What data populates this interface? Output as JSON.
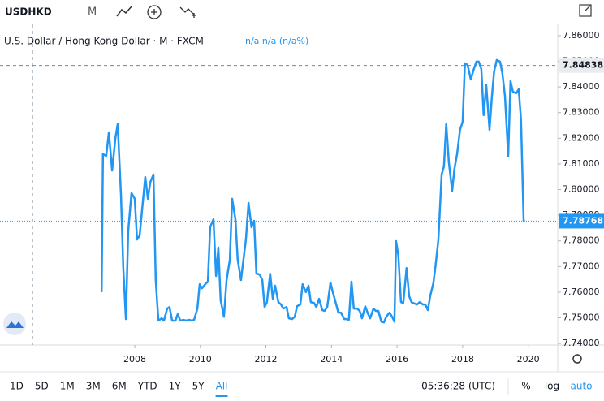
{
  "toolbar": {
    "symbol": "USDHKD",
    "interval": "M"
  },
  "chart_data": {
    "type": "line",
    "title": "U.S. Dollar / Hong Kong Dollar · M · FXCM",
    "legend_values": "n/a n/a (n/a%)",
    "color": "#2196f3",
    "log_scale": false,
    "grid": false,
    "x": [
      2006.99,
      2007.03,
      2007.13,
      2007.21,
      2007.31,
      2007.41,
      2007.48,
      2007.58,
      2007.65,
      2007.73,
      2007.8,
      2007.9,
      2008.0,
      2008.07,
      2008.15,
      2008.22,
      2008.32,
      2008.4,
      2008.47,
      2008.57,
      2008.64,
      2008.72,
      2008.82,
      2008.89,
      2008.99,
      2009.06,
      2009.14,
      2009.24,
      2009.31,
      2009.39,
      2009.49,
      2009.56,
      2009.66,
      2009.73,
      2009.81,
      2009.91,
      2009.98,
      2010.05,
      2010.15,
      2010.23,
      2010.3,
      2010.4,
      2010.48,
      2010.55,
      2010.62,
      2010.72,
      2010.8,
      2010.9,
      2010.97,
      2011.07,
      2011.14,
      2011.24,
      2011.32,
      2011.39,
      2011.47,
      2011.56,
      2011.64,
      2011.71,
      2011.81,
      2011.89,
      2011.96,
      2012.03,
      2012.13,
      2012.21,
      2012.28,
      2012.38,
      2012.46,
      2012.53,
      2012.63,
      2012.7,
      2012.8,
      2012.88,
      2012.95,
      2013.05,
      2013.12,
      2013.22,
      2013.3,
      2013.37,
      2013.47,
      2013.54,
      2013.62,
      2013.72,
      2013.79,
      2013.87,
      2013.97,
      2014.04,
      2014.11,
      2014.21,
      2014.29,
      2014.39,
      2014.46,
      2014.53,
      2014.61,
      2014.68,
      2014.78,
      2014.86,
      2014.93,
      2015.03,
      2015.1,
      2015.18,
      2015.28,
      2015.35,
      2015.43,
      2015.52,
      2015.6,
      2015.67,
      2015.77,
      2015.85,
      2015.92,
      2015.97,
      2016.04,
      2016.12,
      2016.19,
      2016.29,
      2016.37,
      2016.44,
      2016.54,
      2016.61,
      2016.69,
      2016.79,
      2016.86,
      2016.94,
      2017.01,
      2017.11,
      2017.18,
      2017.26,
      2017.36,
      2017.43,
      2017.5,
      2017.58,
      2017.68,
      2017.75,
      2017.83,
      2017.92,
      2018.0,
      2018.07,
      2018.15,
      2018.25,
      2018.32,
      2018.42,
      2018.49,
      2018.57,
      2018.64,
      2018.72,
      2018.82,
      2018.89,
      2018.96,
      2019.04,
      2019.14,
      2019.21,
      2019.29,
      2019.39,
      2019.46,
      2019.53,
      2019.63,
      2019.71,
      2019.78,
      2019.86,
      2019.9
    ],
    "values": [
      7.76,
      7.8138,
      7.8131,
      7.8223,
      7.8074,
      7.8201,
      7.8255,
      7.7979,
      7.7694,
      7.7495,
      7.7837,
      7.7986,
      7.7964,
      7.7805,
      7.7821,
      7.7916,
      7.8049,
      7.7964,
      7.8027,
      7.8059,
      7.7647,
      7.7489,
      7.7498,
      7.7489,
      7.7536,
      7.7542,
      7.7489,
      7.7489,
      7.7514,
      7.7489,
      7.7492,
      7.7489,
      7.7492,
      7.7489,
      7.7492,
      7.7536,
      7.7631,
      7.7615,
      7.7631,
      7.7641,
      7.7853,
      7.7884,
      7.7663,
      7.7774,
      7.7568,
      7.7504,
      7.7647,
      7.7726,
      7.7964,
      7.7884,
      7.7726,
      7.7647,
      7.7732,
      7.7805,
      7.7948,
      7.7853,
      7.7878,
      7.7672,
      7.7669,
      7.7647,
      7.7542,
      7.7561,
      7.7672,
      7.7574,
      7.7625,
      7.7561,
      7.7552,
      7.7536,
      7.7542,
      7.7498,
      7.7495,
      7.7504,
      7.7545,
      7.7552,
      7.7631,
      7.76,
      7.7625,
      7.7561,
      7.7558,
      7.7542,
      7.7574,
      7.753,
      7.7527,
      7.7542,
      7.7637,
      7.76,
      7.7568,
      7.752,
      7.752,
      7.7495,
      7.7495,
      7.7492,
      7.7641,
      7.7536,
      7.7536,
      7.7527,
      7.7498,
      7.7545,
      7.752,
      7.7498,
      7.7536,
      7.7527,
      7.7527,
      7.7485,
      7.7482,
      7.7504,
      7.752,
      7.7504,
      7.7485,
      7.7799,
      7.7742,
      7.7561,
      7.7558,
      7.7694,
      7.7584,
      7.7561,
      7.7555,
      7.7552,
      7.7561,
      7.7552,
      7.7552,
      7.753,
      7.7584,
      7.7637,
      7.771,
      7.7805,
      7.8059,
      7.809,
      7.8255,
      7.8106,
      7.7995,
      7.8081,
      7.8138,
      7.8233,
      7.8264,
      7.8492,
      7.8486,
      7.8429,
      7.8461,
      7.8499,
      7.8499,
      7.847,
      7.829,
      7.8407,
      7.8233,
      7.8359,
      7.8461,
      7.8505,
      7.8499,
      7.8454,
      7.8366,
      7.8131,
      7.8423,
      7.8382,
      7.8375,
      7.8391,
      7.8271,
      7.7878,
      7.78768
    ],
    "xlim": [
      2003.89,
      2020.9
    ],
    "xticks": [
      2008,
      2010,
      2012,
      2014,
      2016,
      2018,
      2020
    ],
    "ylim": [
      7.7394,
      7.8644
    ],
    "yticks": [
      {
        "value": 7.86,
        "label": "7.86000"
      },
      {
        "value": 7.85,
        "label": "7.85000"
      },
      {
        "value": 7.84,
        "label": "7.84000"
      },
      {
        "value": 7.83,
        "label": "7.83000"
      },
      {
        "value": 7.82,
        "label": "7.82000"
      },
      {
        "value": 7.81,
        "label": "7.81000"
      },
      {
        "value": 7.8,
        "label": "7.80000"
      },
      {
        "value": 7.79,
        "label": "7.79000"
      },
      {
        "value": 7.78,
        "label": "7.78000"
      },
      {
        "value": 7.77,
        "label": "7.77000"
      },
      {
        "value": 7.76,
        "label": "7.76000"
      },
      {
        "value": 7.75,
        "label": "7.75000"
      },
      {
        "value": 7.74,
        "label": "7.74000"
      }
    ],
    "crosshair_price": 7.84838,
    "last_price": 7.78768
  },
  "bottom_bar": {
    "ranges": [
      "1D",
      "5D",
      "1M",
      "3M",
      "6M",
      "YTD",
      "1Y",
      "5Y",
      "All"
    ],
    "active_range": 8,
    "time": "05:36:28 (UTC)",
    "scale_options": [
      "%",
      "log",
      "auto"
    ]
  }
}
